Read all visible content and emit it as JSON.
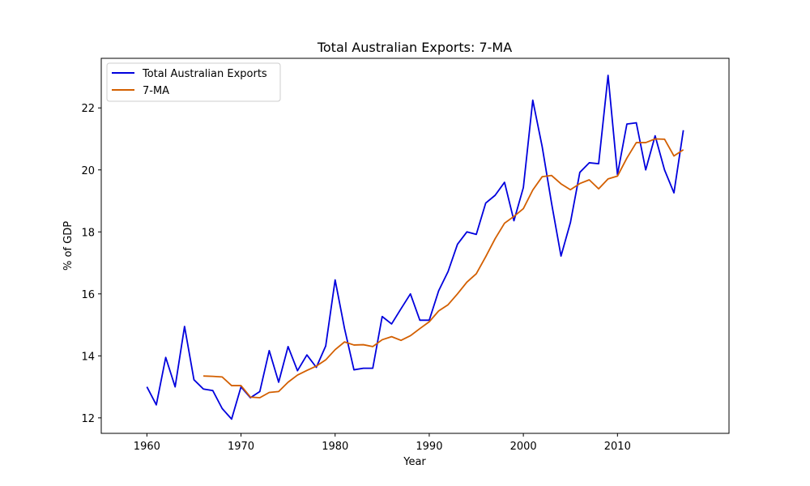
{
  "chart_data": {
    "type": "line",
    "title": "Total Australian Exports: 7-MA",
    "xlabel": "Year",
    "ylabel": "% of GDP",
    "xlim": [
      1955.15,
      2021.85
    ],
    "ylim": [
      11.5,
      23.6
    ],
    "xticks": [
      1960,
      1970,
      1980,
      1990,
      2000,
      2010
    ],
    "yticks": [
      12,
      14,
      16,
      18,
      20,
      22
    ],
    "xtick_labels": [
      "1960",
      "1970",
      "1980",
      "1990",
      "2000",
      "2010"
    ],
    "ytick_labels": [
      "12",
      "14",
      "16",
      "18",
      "20",
      "22"
    ],
    "grid": false,
    "legend": {
      "placement": "top-left"
    },
    "series": [
      {
        "name": "Total Australian Exports",
        "color": "#0000dd",
        "x": [
          1960,
          1961,
          1962,
          1963,
          1964,
          1965,
          1966,
          1967,
          1968,
          1969,
          1970,
          1971,
          1972,
          1973,
          1974,
          1975,
          1976,
          1977,
          1978,
          1979,
          1980,
          1981,
          1982,
          1983,
          1984,
          1985,
          1986,
          1987,
          1988,
          1989,
          1990,
          1991,
          1992,
          1993,
          1994,
          1995,
          1996,
          1997,
          1998,
          1999,
          2000,
          2001,
          2002,
          2003,
          2004,
          2005,
          2006,
          2007,
          2008,
          2009,
          2010,
          2011,
          2012,
          2013,
          2014,
          2015,
          2016,
          2017
        ],
        "values": [
          13.0,
          12.42,
          13.95,
          13.0,
          14.95,
          13.23,
          12.93,
          12.88,
          12.3,
          11.96,
          13.0,
          12.65,
          12.85,
          14.17,
          13.15,
          14.3,
          13.52,
          14.03,
          13.63,
          14.32,
          16.45,
          14.88,
          13.55,
          13.6,
          13.6,
          15.27,
          15.03,
          15.52,
          16.0,
          15.15,
          15.15,
          16.1,
          16.72,
          17.6,
          18.0,
          17.92,
          18.93,
          19.18,
          19.6,
          18.36,
          19.43,
          22.25,
          20.75,
          18.92,
          17.22,
          18.3,
          19.92,
          20.23,
          20.2,
          23.05,
          19.85,
          21.48,
          21.52,
          20.0,
          21.1,
          20.0,
          19.26,
          21.28
        ]
      },
      {
        "name": "7-MA",
        "color": "#d35f00",
        "x": [
          1966,
          1967,
          1968,
          1969,
          1970,
          1971,
          1972,
          1973,
          1974,
          1975,
          1976,
          1977,
          1978,
          1979,
          1980,
          1981,
          1982,
          1983,
          1984,
          1985,
          1986,
          1987,
          1988,
          1989,
          1990,
          1991,
          1992,
          1993,
          1994,
          1995,
          1996,
          1997,
          1998,
          1999,
          2000,
          2001,
          2002,
          2003,
          2004,
          2005,
          2006,
          2007,
          2008,
          2009,
          2010,
          2011,
          2012,
          2013,
          2014,
          2015,
          2016,
          2017
        ],
        "values": [
          13.35,
          13.34,
          13.32,
          13.04,
          13.04,
          12.67,
          12.65,
          12.82,
          12.85,
          13.15,
          13.38,
          13.53,
          13.67,
          13.87,
          14.2,
          14.45,
          14.35,
          14.36,
          14.3,
          14.52,
          14.62,
          14.5,
          14.65,
          14.88,
          15.1,
          15.45,
          15.65,
          16.0,
          16.38,
          16.65,
          17.2,
          17.78,
          18.28,
          18.5,
          18.75,
          19.35,
          19.78,
          19.82,
          19.55,
          19.36,
          19.56,
          19.68,
          19.39,
          19.71,
          19.8,
          20.38,
          20.88,
          20.88,
          21.0,
          20.99,
          20.45,
          20.65
        ]
      }
    ]
  }
}
